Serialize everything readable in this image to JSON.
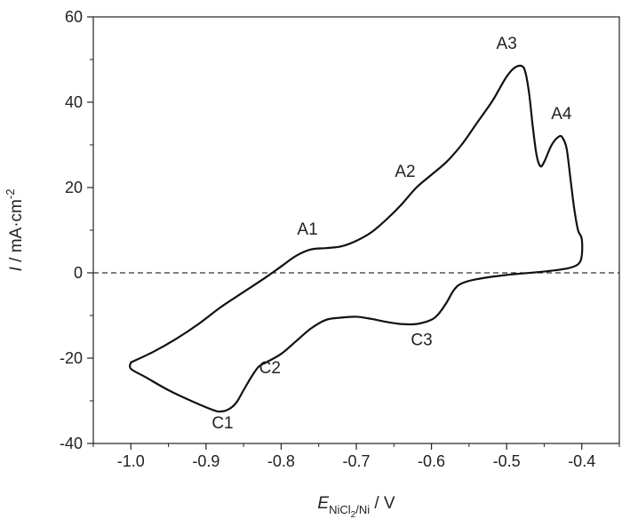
{
  "chart_data": {
    "type": "line",
    "title": "",
    "xlabel": {
      "symbol": "E",
      "subscript_main": "NiCl",
      "subscript_sub": "2",
      "subscript_tail": "/Ni",
      "unit": " / V"
    },
    "ylabel": {
      "symbol": "I",
      "unit": " / mA·cm",
      "superscript": "-2"
    },
    "xlim": [
      -1.05,
      -0.35
    ],
    "ylim": [
      -40,
      60
    ],
    "xticks": [
      -1.0,
      -0.9,
      -0.8,
      -0.7,
      -0.6,
      -0.5,
      -0.4
    ],
    "xtick_labels": [
      "-1.0",
      "-0.9",
      "-0.8",
      "-0.7",
      "-0.6",
      "-0.5",
      "-0.4"
    ],
    "yticks": [
      -40,
      -20,
      0,
      20,
      40,
      60
    ],
    "ytick_labels": [
      "-40",
      "-20",
      "0",
      "20",
      "40",
      "60"
    ],
    "zero_line": {
      "y": 0,
      "style": "dashed"
    },
    "line_color": "#111111",
    "series": [
      {
        "name": "cyclic voltammogram",
        "points": [
          [
            -1.0,
            -21.0
          ],
          [
            -0.97,
            -18.5
          ],
          [
            -0.94,
            -15.5
          ],
          [
            -0.91,
            -12.0
          ],
          [
            -0.88,
            -8.0
          ],
          [
            -0.85,
            -4.5
          ],
          [
            -0.82,
            -1.0
          ],
          [
            -0.8,
            1.5
          ],
          [
            -0.78,
            4.0
          ],
          [
            -0.76,
            5.5
          ],
          [
            -0.74,
            5.8
          ],
          [
            -0.72,
            6.2
          ],
          [
            -0.7,
            7.5
          ],
          [
            -0.68,
            9.5
          ],
          [
            -0.66,
            12.5
          ],
          [
            -0.64,
            16.0
          ],
          [
            -0.62,
            20.0
          ],
          [
            -0.6,
            23.0
          ],
          [
            -0.58,
            26.0
          ],
          [
            -0.56,
            30.0
          ],
          [
            -0.54,
            35.0
          ],
          [
            -0.52,
            40.0
          ],
          [
            -0.51,
            43.0
          ],
          [
            -0.5,
            46.0
          ],
          [
            -0.49,
            48.0
          ],
          [
            -0.48,
            48.5
          ],
          [
            -0.475,
            47.0
          ],
          [
            -0.47,
            42.0
          ],
          [
            -0.465,
            34.0
          ],
          [
            -0.46,
            27.5
          ],
          [
            -0.455,
            25.0
          ],
          [
            -0.45,
            26.0
          ],
          [
            -0.44,
            30.0
          ],
          [
            -0.43,
            32.0
          ],
          [
            -0.425,
            31.5
          ],
          [
            -0.42,
            29.0
          ],
          [
            -0.415,
            22.0
          ],
          [
            -0.41,
            15.0
          ],
          [
            -0.405,
            10.0
          ],
          [
            -0.4,
            8.0
          ],
          [
            -0.4,
            4.0
          ],
          [
            -0.405,
            2.0
          ],
          [
            -0.42,
            1.0
          ],
          [
            -0.45,
            0.3
          ],
          [
            -0.5,
            -0.5
          ],
          [
            -0.54,
            -1.5
          ],
          [
            -0.56,
            -2.5
          ],
          [
            -0.57,
            -4.0
          ],
          [
            -0.58,
            -7.0
          ],
          [
            -0.59,
            -9.5
          ],
          [
            -0.6,
            -11.0
          ],
          [
            -0.62,
            -12.0
          ],
          [
            -0.64,
            -12.0
          ],
          [
            -0.66,
            -11.5
          ],
          [
            -0.68,
            -10.8
          ],
          [
            -0.7,
            -10.3
          ],
          [
            -0.72,
            -10.5
          ],
          [
            -0.74,
            -11.0
          ],
          [
            -0.76,
            -13.0
          ],
          [
            -0.78,
            -16.0
          ],
          [
            -0.8,
            -19.0
          ],
          [
            -0.82,
            -21.0
          ],
          [
            -0.83,
            -22.0
          ],
          [
            -0.84,
            -24.5
          ],
          [
            -0.85,
            -27.5
          ],
          [
            -0.86,
            -30.5
          ],
          [
            -0.87,
            -32.0
          ],
          [
            -0.88,
            -32.5
          ],
          [
            -0.89,
            -32.2
          ],
          [
            -0.92,
            -30.0
          ],
          [
            -0.95,
            -27.5
          ],
          [
            -0.98,
            -24.5
          ],
          [
            -1.0,
            -22.5
          ],
          [
            -1.0,
            -21.0
          ]
        ]
      }
    ],
    "annotations": [
      {
        "text": "A1",
        "x": -0.765,
        "y": 9.0
      },
      {
        "text": "A2",
        "x": -0.635,
        "y": 22.5
      },
      {
        "text": "A3",
        "x": -0.5,
        "y": 52.5
      },
      {
        "text": "A4",
        "x": -0.427,
        "y": 36.0
      },
      {
        "text": "C1",
        "x": -0.878,
        "y": -36.5
      },
      {
        "text": "C2",
        "x": -0.815,
        "y": -23.5
      },
      {
        "text": "C3",
        "x": -0.613,
        "y": -17.0
      }
    ]
  }
}
